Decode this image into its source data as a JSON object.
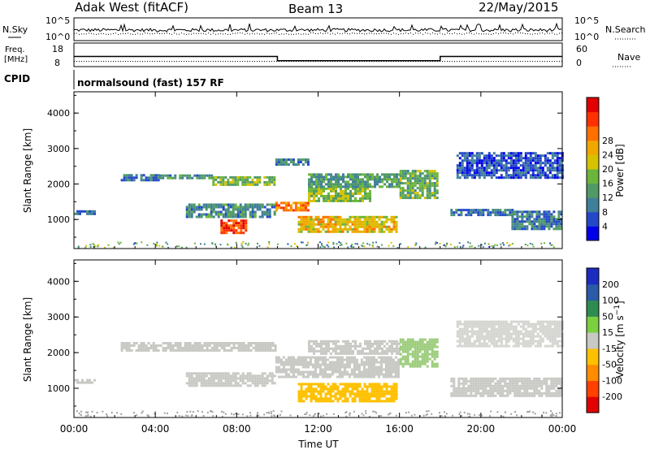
{
  "header": {
    "station": "Adak West (fitACF)",
    "beam": "Beam 13",
    "date": "22/May/2015"
  },
  "noise_panel": {
    "left_label": "N.Sky",
    "right_label": "N.Search",
    "left_ticks": [
      "10^5",
      "10^0"
    ],
    "right_ticks": [
      "10^5",
      "10^0"
    ]
  },
  "freq_panel": {
    "left_label_line1": "Freq.",
    "left_label_line2": "[MHz]",
    "right_label": "Nave",
    "left_ticks": [
      "18",
      "8"
    ],
    "right_ticks": [
      "60",
      "0"
    ],
    "freq_steps_mhz": [
      {
        "from_hour": 0,
        "to_hour": 10,
        "value": 12.3
      },
      {
        "from_hour": 10,
        "to_hour": 18,
        "value": 10.5
      },
      {
        "from_hour": 18,
        "to_hour": 24,
        "value": 12.3
      }
    ]
  },
  "cpid": {
    "label": "CPID",
    "text": "normalsound (fast) 157 RF"
  },
  "x_axis": {
    "label": "Time UT",
    "ticks": [
      "00:00",
      "04:00",
      "08:00",
      "12:00",
      "16:00",
      "20:00",
      "00:00"
    ],
    "tick_hours": [
      0,
      4,
      8,
      12,
      16,
      20,
      24
    ]
  },
  "chart_data": [
    {
      "type": "heatmap",
      "title": "",
      "xlabel": "Time UT",
      "ylabel": "Slant Range [km]",
      "yticks": [
        "1000",
        "2000",
        "3000",
        "4000"
      ],
      "ytick_values": [
        1000,
        2000,
        3000,
        4000
      ],
      "ylim": [
        180,
        4600
      ],
      "xlim_hours": [
        0,
        24
      ],
      "colorbar": {
        "label": "Power [dB]",
        "ticks": [
          "4",
          "8",
          "12",
          "16",
          "20",
          "24",
          "28"
        ],
        "range": [
          0,
          30
        ],
        "colors": [
          "#0000e8",
          "#2448c8",
          "#3f7f9a",
          "#4f9a66",
          "#6cb53c",
          "#d6c200",
          "#f0a800",
          "#ff7000",
          "#ff3000",
          "#e00000"
        ]
      },
      "bands": [
        {
          "t0": 0.0,
          "t1": 1.0,
          "r0": 1160,
          "r1": 1260,
          "val": 6
        },
        {
          "t0": 2.3,
          "t1": 4.2,
          "r0": 2120,
          "r1": 2280,
          "val": 7
        },
        {
          "t0": 4.2,
          "t1": 6.8,
          "r0": 2150,
          "r1": 2270,
          "val": 9
        },
        {
          "t0": 6.8,
          "t1": 9.9,
          "r0": 1950,
          "r1": 2220,
          "val": 13
        },
        {
          "t0": 5.5,
          "t1": 9.9,
          "r0": 1050,
          "r1": 1450,
          "val": 9
        },
        {
          "t0": 7.2,
          "t1": 8.4,
          "r0": 620,
          "r1": 1000,
          "val": 25
        },
        {
          "t0": 9.9,
          "t1": 11.5,
          "r0": 1280,
          "r1": 1500,
          "val": 22
        },
        {
          "t0": 11.5,
          "t1": 14.5,
          "r0": 1500,
          "r1": 1900,
          "val": 14
        },
        {
          "t0": 9.9,
          "t1": 11.5,
          "r0": 2580,
          "r1": 2720,
          "val": 8
        },
        {
          "t0": 11.5,
          "t1": 16.0,
          "r0": 1950,
          "r1": 2300,
          "val": 10
        },
        {
          "t0": 11.0,
          "t1": 15.8,
          "r0": 650,
          "r1": 1100,
          "val": 18
        },
        {
          "t0": 16.0,
          "t1": 17.8,
          "r0": 1600,
          "r1": 2400,
          "val": 12
        },
        {
          "t0": 18.5,
          "t1": 21.5,
          "r0": 1150,
          "r1": 1300,
          "val": 7
        },
        {
          "t0": 21.5,
          "t1": 24.0,
          "r0": 750,
          "r1": 1250,
          "val": 8
        },
        {
          "t0": 18.8,
          "t1": 24.0,
          "r0": 2150,
          "r1": 2900,
          "val": 5
        }
      ]
    },
    {
      "type": "heatmap",
      "title": "",
      "xlabel": "Time UT",
      "ylabel": "Slant Range [km]",
      "yticks": [
        "1000",
        "2000",
        "3000",
        "4000"
      ],
      "ytick_values": [
        1000,
        2000,
        3000,
        4000
      ],
      "ylim": [
        180,
        4600
      ],
      "xlim_hours": [
        0,
        24
      ],
      "colorbar": {
        "label": "Velocity [m s^-1]",
        "ticks": [
          "200",
          "100",
          "50",
          "15",
          "-15",
          "-50",
          "-100",
          "-200"
        ],
        "colors": [
          "#1c2cc0",
          "#2a5aa8",
          "#2e8c52",
          "#7cd040",
          "#c8c8c4",
          "#ffc000",
          "#ff8c00",
          "#ff4000",
          "#e00000"
        ]
      },
      "bands": [
        {
          "t0": 0.0,
          "t1": 1.0,
          "r0": 1160,
          "r1": 1260,
          "color": "#c8c8c4"
        },
        {
          "t0": 2.3,
          "t1": 9.9,
          "r0": 2050,
          "r1": 2300,
          "color": "#c8c8c4"
        },
        {
          "t0": 5.5,
          "t1": 9.9,
          "r0": 1050,
          "r1": 1450,
          "color": "#c8c8c4"
        },
        {
          "t0": 9.9,
          "t1": 16.0,
          "r0": 1300,
          "r1": 1900,
          "color": "#c8c8c4"
        },
        {
          "t0": 11.5,
          "t1": 16.0,
          "r0": 1950,
          "r1": 2350,
          "color": "#c8c8c4"
        },
        {
          "t0": 11.0,
          "t1": 15.8,
          "r0": 650,
          "r1": 1150,
          "color": "#ffc000"
        },
        {
          "t0": 16.0,
          "t1": 17.8,
          "r0": 1600,
          "r1": 2400,
          "color": "#9ccc7c"
        },
        {
          "t0": 18.5,
          "t1": 24.0,
          "r0": 800,
          "r1": 1300,
          "color": "#c8c8c4"
        },
        {
          "t0": 18.8,
          "t1": 24.0,
          "r0": 2150,
          "r1": 2900,
          "color": "#d4d4d0"
        }
      ]
    }
  ]
}
